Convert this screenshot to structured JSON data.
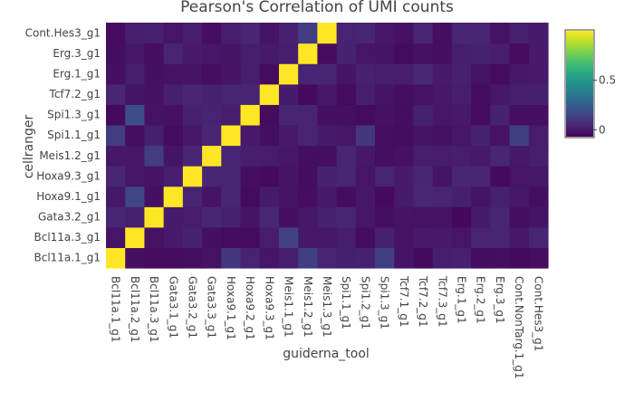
{
  "chart_data": {
    "type": "heatmap",
    "title": "Pearson's Correlation of UMI counts",
    "xlabel": "guiderna_tool",
    "ylabel": "cellranger",
    "x_categories": [
      "Bcl11a.1_g1",
      "Bcl11a.2_g1",
      "Bcl11a.3_g1",
      "Gata3.1_g1",
      "Gata3.2_g1",
      "Gata3.3_g1",
      "Hoxa9.1_g1",
      "Hoxa9.2_g1",
      "Hoxa9.3_g1",
      "Meis1.1_g1",
      "Meis1.2_g1",
      "Meis1.3_g1",
      "Spi1.1_g1",
      "Spi1.2_g1",
      "Spi1.3_g1",
      "Tcf7.1_g1",
      "Tcf7.2_g1",
      "Tcf7.3_g1",
      "Erg.1_g1",
      "Erg.2_g1",
      "Erg.3_g1",
      "Cont.NonTarg.1_g1",
      "Cont.Hes3_g1"
    ],
    "y_categories": [
      "Bcl11a.1_g1",
      "Bcl11a.3_g1",
      "Gata3.2_g1",
      "Hoxa9.1_g1",
      "Hoxa9.3_g1",
      "Meis1.2_g1",
      "Spi1.1_g1",
      "Spi1.3_g1",
      "Tcf7.2_g1",
      "Erg.1_g1",
      "Erg.3_g1",
      "Cont.Hes3_g1"
    ],
    "diagonal": [
      [
        0,
        0
      ],
      [
        1,
        1
      ],
      [
        2,
        2
      ],
      [
        3,
        3
      ],
      [
        4,
        4
      ],
      [
        5,
        5
      ],
      [
        6,
        6
      ],
      [
        7,
        7
      ],
      [
        8,
        8
      ],
      [
        9,
        9
      ],
      [
        10,
        10
      ],
      [
        11,
        11
      ],
      [
        12,
        12
      ],
      [
        13,
        13
      ],
      [
        14,
        14
      ],
      [
        15,
        15
      ],
      [
        16,
        16
      ],
      [
        17,
        17
      ],
      [
        18,
        18
      ],
      [
        19,
        19
      ],
      [
        20,
        20
      ],
      [
        21,
        21
      ],
      [
        22,
        22
      ]
    ],
    "diagonal_value": 1.0,
    "highlights": [
      {
        "x": 1,
        "y": 7,
        "value": 0.18
      },
      {
        "x": 1,
        "y": 3,
        "value": 0.15
      },
      {
        "x": 2,
        "y": 5,
        "value": 0.12
      },
      {
        "x": 0,
        "y": 6,
        "value": 0.12
      },
      {
        "x": 6,
        "y": 0,
        "value": 0.1
      },
      {
        "x": 9,
        "y": 1,
        "value": 0.14
      },
      {
        "x": 10,
        "y": 0,
        "value": 0.13
      },
      {
        "x": 10,
        "y": 11,
        "value": 0.12
      },
      {
        "x": 14,
        "y": 0,
        "value": 0.13
      },
      {
        "x": 13,
        "y": 6,
        "value": 0.1
      },
      {
        "x": 21,
        "y": 6,
        "value": 0.13
      }
    ],
    "background_value": 0.0,
    "zlim": [
      -0.07,
      1.0
    ],
    "colorscale": "viridis",
    "colorbar": {
      "ticks": [
        0,
        0.5
      ],
      "tick_labels": [
        "0",
        "0.5"
      ]
    }
  }
}
